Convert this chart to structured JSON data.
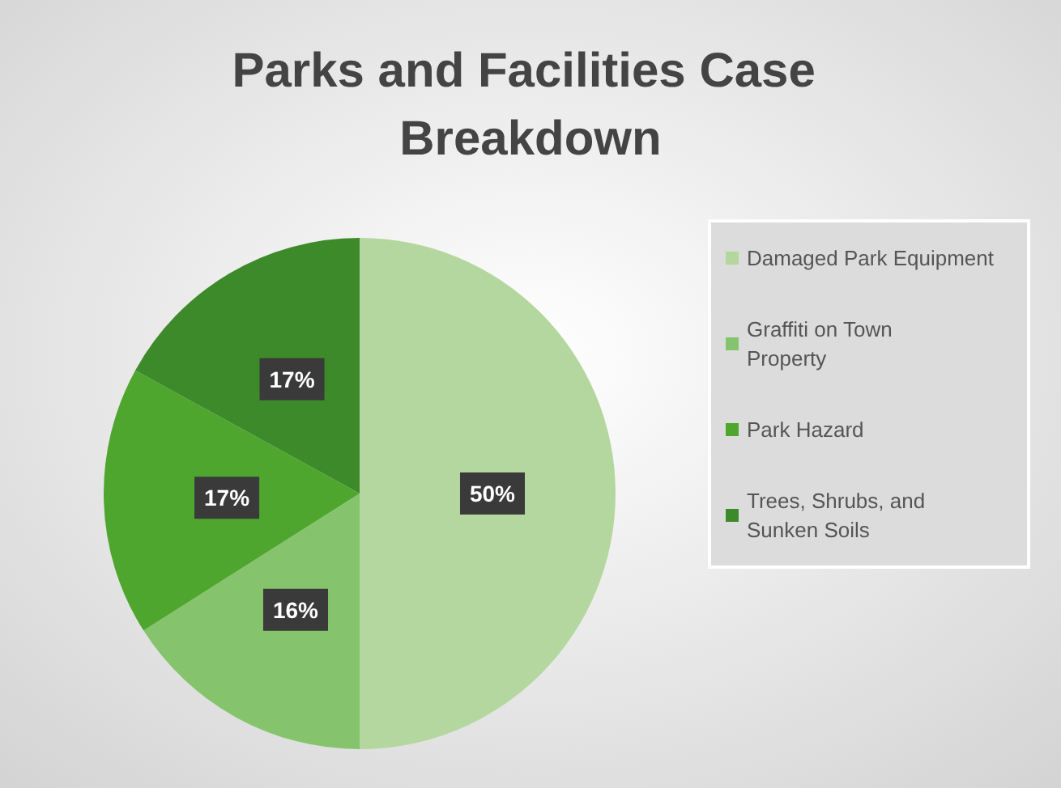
{
  "chart_data": {
    "type": "pie",
    "title": "Parks and Facilities Case Breakdown",
    "categories": [
      "Damaged Park Equipment",
      "Graffiti on Town Property",
      "Park Hazard",
      "Trees, Shrubs, and Sunken Soils"
    ],
    "values": [
      50,
      16,
      17,
      17
    ],
    "colors": [
      "#b4d7a0",
      "#85c46c",
      "#4fa62f",
      "#3d8a2a"
    ],
    "value_labels": [
      "50%",
      "16%",
      "17%",
      "17%"
    ],
    "legend": "right"
  }
}
